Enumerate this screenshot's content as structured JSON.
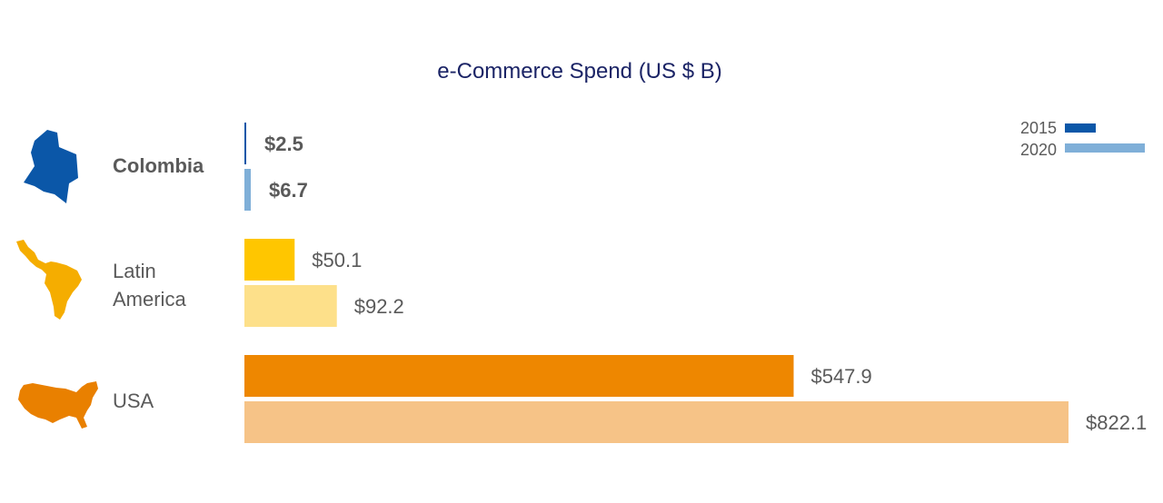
{
  "chart_data": {
    "type": "bar",
    "orientation": "horizontal",
    "title": "e-Commerce Spend (US $ B)",
    "xlabel": "",
    "ylabel": "",
    "xlim": [
      0,
      822.1
    ],
    "grid": false,
    "legend_position": "top-right",
    "categories": [
      {
        "label": "Colombia",
        "icon": "colombia-map-icon",
        "bold": true
      },
      {
        "label": "Latin America",
        "icon": "latin-america-map-icon",
        "bold": false
      },
      {
        "label": "USA",
        "icon": "usa-map-icon",
        "bold": false
      }
    ],
    "series": [
      {
        "name": "2015",
        "values": [
          2.5,
          50.1,
          547.9
        ],
        "labels": [
          "$2.5",
          "$50.1",
          "$547.9"
        ]
      },
      {
        "name": "2020",
        "values": [
          6.7,
          92.2,
          822.1
        ],
        "labels": [
          "$6.7",
          "$92.2",
          "$822.1"
        ]
      }
    ],
    "colors": {
      "Colombia": [
        "#0b57a8",
        "#7fafd8"
      ],
      "Latin America": [
        "#ffc600",
        "#fde08a"
      ],
      "USA": [
        "#ee8700",
        "#f6c387"
      ]
    },
    "legend_colors": [
      "#0b57a8",
      "#7fafd8"
    ]
  }
}
